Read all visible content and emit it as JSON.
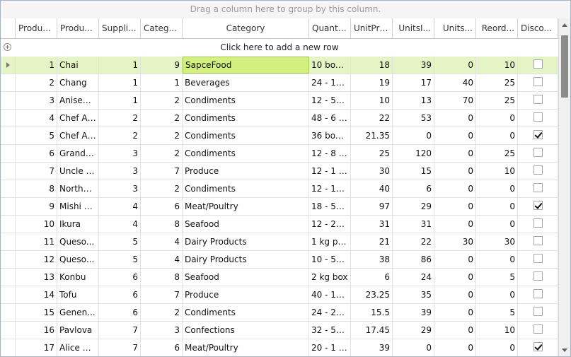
{
  "group_panel": {
    "hint": "Drag a column here to group by this column."
  },
  "columns": [
    {
      "label": "Produ...",
      "width": 59,
      "align": "left"
    },
    {
      "label": "Produ...",
      "width": 59,
      "align": "left"
    },
    {
      "label": "Suppli...",
      "width": 59,
      "align": "left"
    },
    {
      "label": "Categ...",
      "width": 59,
      "align": "left"
    },
    {
      "label": "Category",
      "width": 179,
      "align": "center"
    },
    {
      "label": "Quanti...",
      "width": 59,
      "align": "left"
    },
    {
      "label": "UnitPri...",
      "width": 59,
      "align": "left"
    },
    {
      "label": "UnitsI...",
      "width": 59,
      "align": "right"
    },
    {
      "label": "Units...",
      "width": 59,
      "align": "right"
    },
    {
      "label": "Reord...",
      "width": 59,
      "align": "right"
    },
    {
      "label": "Disco...",
      "width": 57,
      "align": "left"
    }
  ],
  "add_row": {
    "label": "Click here to add a new row"
  },
  "rows": [
    [
      "1",
      "Chai",
      "1",
      "9",
      "SapceFood",
      "10 boxe...",
      "18",
      "39",
      "0",
      "10",
      false
    ],
    [
      "2",
      "Chang",
      "1",
      "1",
      "Beverages",
      "24 - 12...",
      "19",
      "17",
      "40",
      "25",
      false
    ],
    [
      "3",
      "Aniseed...",
      "1",
      "2",
      "Condiments",
      "12 - 550...",
      "10",
      "13",
      "70",
      "25",
      false
    ],
    [
      "4",
      "Chef An...",
      "2",
      "2",
      "Condiments",
      "48 - 6 o...",
      "22",
      "53",
      "0",
      "0",
      false
    ],
    [
      "5",
      "Chef An...",
      "2",
      "2",
      "Condiments",
      "36 boxes",
      "21.35",
      "0",
      "0",
      "0",
      true
    ],
    [
      "6",
      "Grandm...",
      "3",
      "2",
      "Condiments",
      "12 - 8 o...",
      "25",
      "120",
      "0",
      "25",
      false
    ],
    [
      "7",
      "Uncle B...",
      "3",
      "7",
      "Produce",
      "12 - 1 l...",
      "30",
      "15",
      "0",
      "10",
      false
    ],
    [
      "8",
      "Northw...",
      "3",
      "2",
      "Condiments",
      "12 - 12...",
      "40",
      "6",
      "0",
      "0",
      false
    ],
    [
      "9",
      "Mishi K...",
      "4",
      "6",
      "Meat/Poultry",
      "18 - 500...",
      "97",
      "29",
      "0",
      "0",
      true
    ],
    [
      "10",
      "Ikura",
      "4",
      "8",
      "Seafood",
      "12 - 200...",
      "31",
      "31",
      "0",
      "0",
      false
    ],
    [
      "11",
      "Queso...",
      "5",
      "4",
      "Dairy Products",
      "1 kg pkg.",
      "21",
      "22",
      "30",
      "30",
      false
    ],
    [
      "12",
      "Queso...",
      "5",
      "4",
      "Dairy Products",
      "10 - 500...",
      "38",
      "86",
      "0",
      "0",
      false
    ],
    [
      "13",
      "Konbu",
      "6",
      "8",
      "Seafood",
      "2 kg box",
      "6",
      "24",
      "0",
      "5",
      false
    ],
    [
      "14",
      "Tofu",
      "6",
      "7",
      "Produce",
      "40 - 100...",
      "23.25",
      "35",
      "0",
      "0",
      false
    ],
    [
      "15",
      "Genen...",
      "6",
      "2",
      "Condiments",
      "24 - 250...",
      "15.5",
      "39",
      "0",
      "5",
      false
    ],
    [
      "16",
      "Pavlova",
      "7",
      "3",
      "Confections",
      "32 - 500...",
      "17.45",
      "29",
      "0",
      "10",
      false
    ],
    [
      "17",
      "Alice M...",
      "7",
      "6",
      "Meat/Poultry",
      "20 - 1 k...",
      "39",
      "0",
      "0",
      "0",
      true
    ]
  ],
  "selected_row_index": 0,
  "current_cell_column": 4,
  "colors": {
    "selected_row": "#e5f4c5",
    "current_cell": "#d3ef80"
  }
}
